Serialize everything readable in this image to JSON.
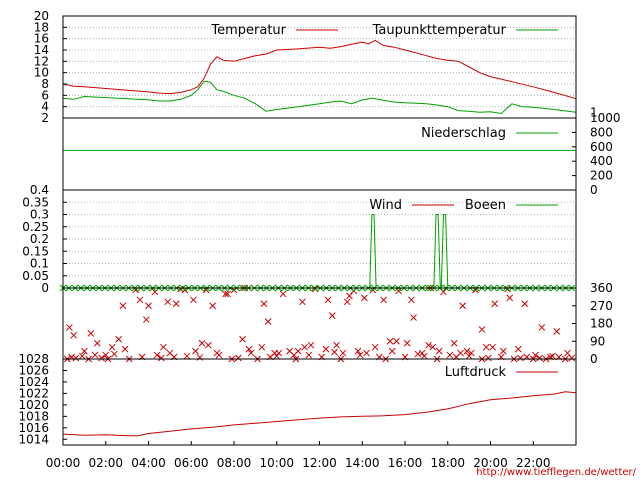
{
  "credit": "http://www.tiefflegen.de/wetter/",
  "colors": {
    "red": "#cc0000",
    "green": "#00a000",
    "axis": "#000000",
    "grid": "#a0a0a0"
  },
  "time_axis": {
    "labels": [
      "00:00",
      "02:00",
      "04:00",
      "06:00",
      "08:00",
      "10:00",
      "12:00",
      "14:00",
      "16:00",
      "18:00",
      "20:00",
      "22:00"
    ],
    "range_hours": [
      0,
      24
    ]
  },
  "chart_data": [
    {
      "id": "temperature",
      "type": "line",
      "ylim": [
        2,
        20
      ],
      "yticks": [
        2,
        4,
        6,
        8,
        10,
        12,
        14,
        16,
        18,
        20
      ],
      "y2ticks": [
        "1"
      ],
      "grid": true,
      "series": [
        {
          "name": "Temperatur",
          "color": "#cc0000",
          "x": [
            0,
            0.5,
            1,
            2,
            3,
            4,
            4.5,
            5,
            5.5,
            6,
            6.3,
            6.6,
            6.9,
            7.2,
            7.5,
            8,
            8.5,
            9,
            9.5,
            10,
            11,
            12,
            12.5,
            13,
            13.5,
            14,
            14.3,
            14.6,
            15,
            15.5,
            16,
            16.5,
            17,
            17.5,
            18,
            18.5,
            19,
            19.5,
            20,
            21,
            22,
            23,
            24
          ],
          "y": [
            8,
            7.6,
            7.5,
            7.2,
            6.9,
            6.6,
            6.4,
            6.3,
            6.5,
            7,
            7.5,
            9,
            11.5,
            12.8,
            12.2,
            12,
            12.5,
            13,
            13.3,
            14,
            14.2,
            14.5,
            14.3,
            14.6,
            15,
            15.4,
            15.1,
            15.7,
            14.8,
            14.5,
            14,
            13.5,
            13,
            12.5,
            12.2,
            12,
            11,
            10,
            9.3,
            8.4,
            7.5,
            6.5,
            5.4
          ]
        },
        {
          "name": "Taupunkttemperatur",
          "color": "#00a000",
          "x": [
            0,
            0.5,
            1,
            2,
            3,
            4,
            4.5,
            5,
            5.5,
            6,
            6.3,
            6.6,
            6.9,
            7.2,
            7.5,
            8,
            8.5,
            9,
            9.5,
            10,
            11,
            12,
            12.5,
            13,
            13.5,
            14,
            14.5,
            15,
            15.5,
            16,
            16.5,
            17,
            17.5,
            18,
            18.5,
            19,
            19.5,
            20,
            20.5,
            21,
            21.5,
            22,
            23,
            24
          ],
          "y": [
            5.5,
            5.3,
            5.8,
            5.6,
            5.4,
            5.2,
            5,
            5,
            5.3,
            6,
            7,
            8.5,
            8.3,
            7,
            6.7,
            6,
            5.5,
            4.5,
            3.2,
            3.5,
            4,
            4.5,
            4.8,
            5,
            4.5,
            5.2,
            5.5,
            5.1,
            4.8,
            4.7,
            4.6,
            4.5,
            4.3,
            4,
            3.3,
            3.2,
            3,
            3.1,
            2.8,
            4.5,
            4,
            3.9,
            3.5,
            3
          ]
        }
      ]
    },
    {
      "id": "precipitation",
      "type": "line",
      "ylim": [
        0,
        1
      ],
      "yticks": [],
      "y2lim": [
        0,
        1000
      ],
      "y2ticks": [
        0,
        200,
        400,
        600,
        800,
        1000
      ],
      "series": [
        {
          "name": "Niederschlag",
          "color": "#00a000",
          "x": [
            0,
            24
          ],
          "y": [
            0.55,
            0.55
          ]
        }
      ]
    },
    {
      "id": "wind",
      "type": "line",
      "ylim": [
        0,
        0.4
      ],
      "yticks": [
        0,
        0.05,
        0.1,
        0.15,
        0.2,
        0.25,
        0.3,
        0.35,
        0.4
      ],
      "grid": true,
      "series": [
        {
          "name": "Wind",
          "color": "#cc0000",
          "x": [
            0,
            24
          ],
          "y": [
            0,
            0
          ]
        },
        {
          "name": "Boeen",
          "color": "#00a000",
          "x": [
            0,
            14.35,
            14.45,
            14.55,
            14.65,
            17.35,
            17.45,
            17.55,
            17.65,
            17.7,
            17.8,
            17.9,
            18,
            24
          ],
          "y": [
            0,
            0,
            0.3,
            0.3,
            0,
            0,
            0.3,
            0.3,
            0,
            0,
            0.3,
            0.3,
            0,
            0
          ]
        }
      ]
    },
    {
      "id": "wind_direction",
      "type": "scatter",
      "ylim": [
        0,
        360
      ],
      "y2ticks": [
        0,
        90,
        180,
        270,
        360
      ],
      "series": [
        {
          "name": "",
          "color": "#cc0000",
          "marker": "x",
          "x": [
            0.2,
            0.4,
            0.6,
            0.9,
            1.2,
            1.5,
            1.8,
            2.1,
            2.4,
            2.8,
            3.1,
            3.4,
            3.7,
            4.0,
            4.3,
            4.6,
            4.9,
            5.2,
            5.5,
            5.8,
            6.1,
            6.4,
            6.7,
            7.0,
            7.3,
            7.6,
            7.9,
            8.2,
            8.5,
            8.8,
            9.1,
            9.4,
            9.7,
            10.0,
            10.3,
            10.6,
            10.9,
            11.2,
            11.5,
            11.8,
            12.1,
            12.4,
            12.7,
            13.0,
            13.3,
            13.6,
            13.9,
            14.2,
            14.5,
            14.8,
            15.1,
            15.4,
            15.7,
            16.0,
            16.3,
            16.6,
            16.9,
            17.2,
            17.5,
            17.8,
            18.1,
            18.4,
            18.7,
            19.0,
            19.3,
            19.6,
            19.9,
            20.2,
            20.5,
            20.8,
            21.1,
            21.4,
            21.7,
            22.0,
            22.3,
            22.6,
            22.9,
            23.2,
            23.5,
            23.8,
            0.5,
            1.0,
            1.6,
            2.3,
            2.9,
            3.6,
            4.4,
            5.0,
            5.7,
            6.5,
            7.2,
            8.0,
            8.7,
            9.3,
            10.1,
            10.8,
            11.6,
            12.3,
            13.1,
            13.8,
            14.6,
            15.3,
            16.1,
            16.8,
            17.6,
            18.3,
            19.1,
            19.8,
            20.6,
            21.3,
            22.1,
            22.8,
            23.6,
            1.3,
            2.6,
            3.9,
            5.3,
            6.8,
            8.4,
            9.9,
            11.3,
            12.8,
            14.1,
            15.6,
            17.1,
            18.6,
            20.1,
            21.6,
            23.1,
            0.3,
            2.0,
            4.7,
            6.2,
            7.7,
            9.6,
            11.0,
            12.6,
            13.4,
            15.0,
            16.4,
            17.3,
            18.9,
            19.6,
            20.9,
            22.4
          ],
          "y": [
            0,
            10,
            5,
            15,
            0,
            20,
            5,
            0,
            25,
            270,
            0,
            350,
            10,
            270,
            340,
            5,
            290,
            10,
            355,
            15,
            300,
            8,
            350,
            270,
            20,
            330,
            0,
            5,
            360,
            30,
            0,
            280,
            10,
            15,
            330,
            40,
            0,
            290,
            20,
            355,
            10,
            300,
            35,
            0,
            290,
            345,
            20,
            30,
            350,
            10,
            0,
            40,
            345,
            10,
            300,
            25,
            15,
            360,
            0,
            340,
            20,
            10,
            270,
            15,
            350,
            0,
            5,
            280,
            10,
            355,
            0,
            5,
            10,
            0,
            5,
            0,
            15,
            10,
            0,
            5,
            120,
            40,
            80,
            60,
            50,
            300,
            20,
            30,
            350,
            80,
            30,
            350,
            50,
            60,
            30,
            20,
            70,
            50,
            30,
            40,
            60,
            90,
            80,
            30,
            40,
            80,
            30,
            60,
            40,
            50,
            20,
            10,
            30,
            130,
            100,
            200,
            280,
            70,
            100,
            30,
            60,
            70,
            310,
            90,
            70,
            30,
            60,
            280,
            140,
            160,
            20,
            60,
            40,
            330,
            190,
            40,
            220,
            320,
            300,
            210,
            60,
            40,
            150,
            310,
            160
          ]
        }
      ]
    },
    {
      "id": "pressure",
      "type": "line",
      "ylim": [
        1013,
        1028
      ],
      "yticks": [
        1014,
        1016,
        1018,
        1020,
        1022,
        1024,
        1026,
        1028
      ],
      "series": [
        {
          "name": "Luftdruck",
          "color": "#cc0000",
          "x": [
            0,
            1,
            2,
            3,
            3.5,
            4,
            5,
            6,
            7,
            8,
            9,
            10,
            11,
            12,
            13,
            14,
            15,
            16,
            17,
            18,
            19,
            20,
            21,
            22,
            23,
            23.5,
            24
          ],
          "y": [
            1014.9,
            1014.7,
            1014.8,
            1014.6,
            1014.6,
            1015,
            1015.4,
            1015.8,
            1016.1,
            1016.5,
            1016.8,
            1017.1,
            1017.4,
            1017.7,
            1017.9,
            1018,
            1018.1,
            1018.3,
            1018.7,
            1019.3,
            1020.2,
            1020.9,
            1021.2,
            1021.6,
            1021.9,
            1022.3,
            1022.1
          ]
        }
      ]
    }
  ]
}
